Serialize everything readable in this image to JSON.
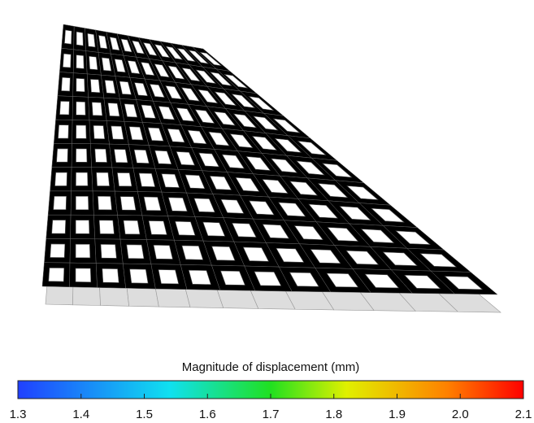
{
  "colorbar": {
    "title": "Magnitude of displacement (mm)",
    "range": [
      1.3,
      2.1
    ],
    "ticks": [
      1.3,
      1.4,
      1.5,
      1.6,
      1.7,
      1.8,
      1.9,
      {
        "value": 2,
        "label": "2.0"
      },
      2.1
    ]
  }
}
